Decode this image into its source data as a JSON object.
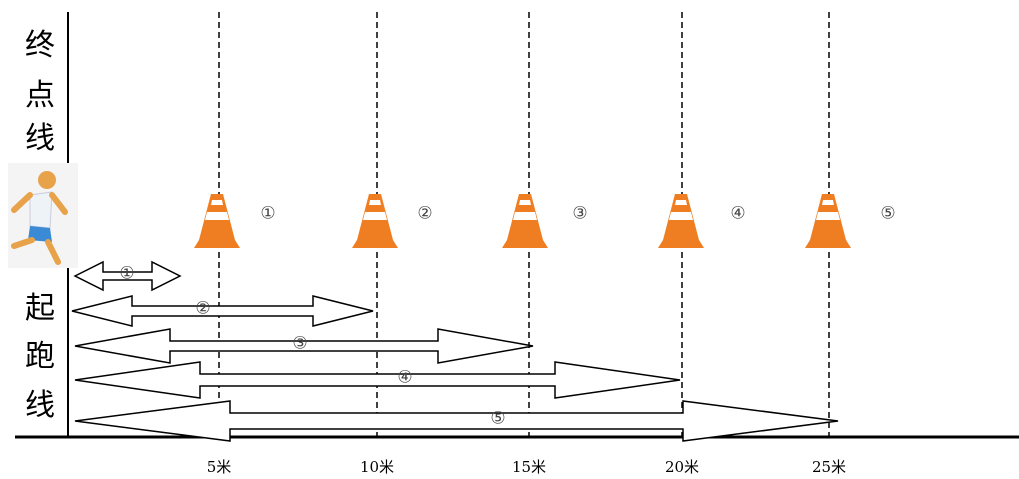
{
  "finish_line": [
    "终",
    "点",
    "线"
  ],
  "start_line": [
    "起",
    "跑",
    "线"
  ],
  "cones": [
    {
      "label": "①"
    },
    {
      "label": "②"
    },
    {
      "label": "③"
    },
    {
      "label": "④"
    },
    {
      "label": "⑤"
    }
  ],
  "arrows": [
    {
      "label": "①"
    },
    {
      "label": "②"
    },
    {
      "label": "③"
    },
    {
      "label": "④"
    },
    {
      "label": "⑤"
    }
  ],
  "distances": [
    {
      "label": "5米"
    },
    {
      "label": "10米"
    },
    {
      "label": "15米"
    },
    {
      "label": "20米"
    },
    {
      "label": "25米"
    }
  ]
}
